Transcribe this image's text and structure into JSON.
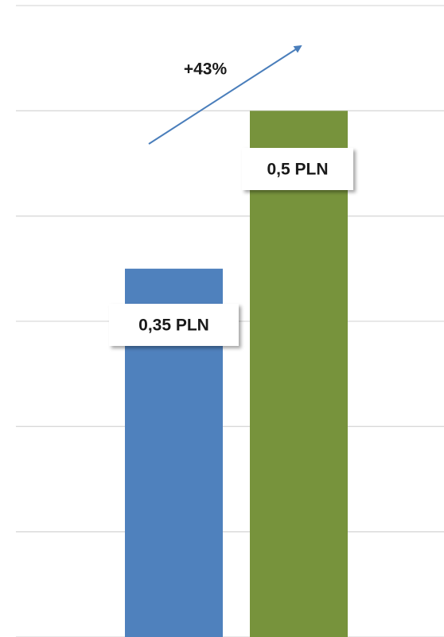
{
  "chart_data": {
    "type": "bar",
    "categories": [
      null,
      null
    ],
    "values": [
      0.35,
      0.5
    ],
    "value_labels": [
      "0,35 PLN",
      "0,5 PLN"
    ],
    "colors": [
      "#4f81bd",
      "#77933c"
    ],
    "annotation": "+43%",
    "ylim": [
      0,
      0.6
    ],
    "yticks": [
      0,
      0.1,
      0.2,
      0.3,
      0.4,
      0.5,
      0.6
    ],
    "grid": true
  }
}
